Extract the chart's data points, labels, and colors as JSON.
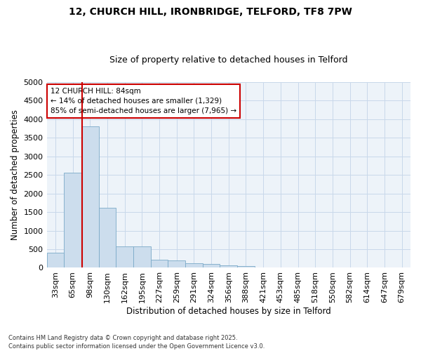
{
  "title_line1": "12, CHURCH HILL, IRONBRIDGE, TELFORD, TF8 7PW",
  "title_line2": "Size of property relative to detached houses in Telford",
  "xlabel": "Distribution of detached houses by size in Telford",
  "ylabel": "Number of detached properties",
  "categories": [
    "33sqm",
    "65sqm",
    "98sqm",
    "130sqm",
    "162sqm",
    "195sqm",
    "227sqm",
    "259sqm",
    "291sqm",
    "324sqm",
    "356sqm",
    "388sqm",
    "421sqm",
    "453sqm",
    "485sqm",
    "518sqm",
    "550sqm",
    "582sqm",
    "614sqm",
    "647sqm",
    "679sqm"
  ],
  "values": [
    400,
    2550,
    3800,
    1620,
    570,
    570,
    220,
    200,
    130,
    100,
    60,
    50,
    0,
    0,
    0,
    0,
    0,
    0,
    0,
    0,
    0
  ],
  "bar_color": "#ccdded",
  "bar_edge_color": "#7aaac8",
  "grid_color": "#c8d8ea",
  "background_color": "#edf3f9",
  "vline_x": 1.55,
  "vline_color": "#cc0000",
  "annotation_text": "12 CHURCH HILL: 84sqm\n← 14% of detached houses are smaller (1,329)\n85% of semi-detached houses are larger (7,965) →",
  "annotation_box_color": "#cc0000",
  "ylim": [
    0,
    5000
  ],
  "yticks": [
    0,
    500,
    1000,
    1500,
    2000,
    2500,
    3000,
    3500,
    4000,
    4500,
    5000
  ],
  "footer_line1": "Contains HM Land Registry data © Crown copyright and database right 2025.",
  "footer_line2": "Contains public sector information licensed under the Open Government Licence v3.0."
}
